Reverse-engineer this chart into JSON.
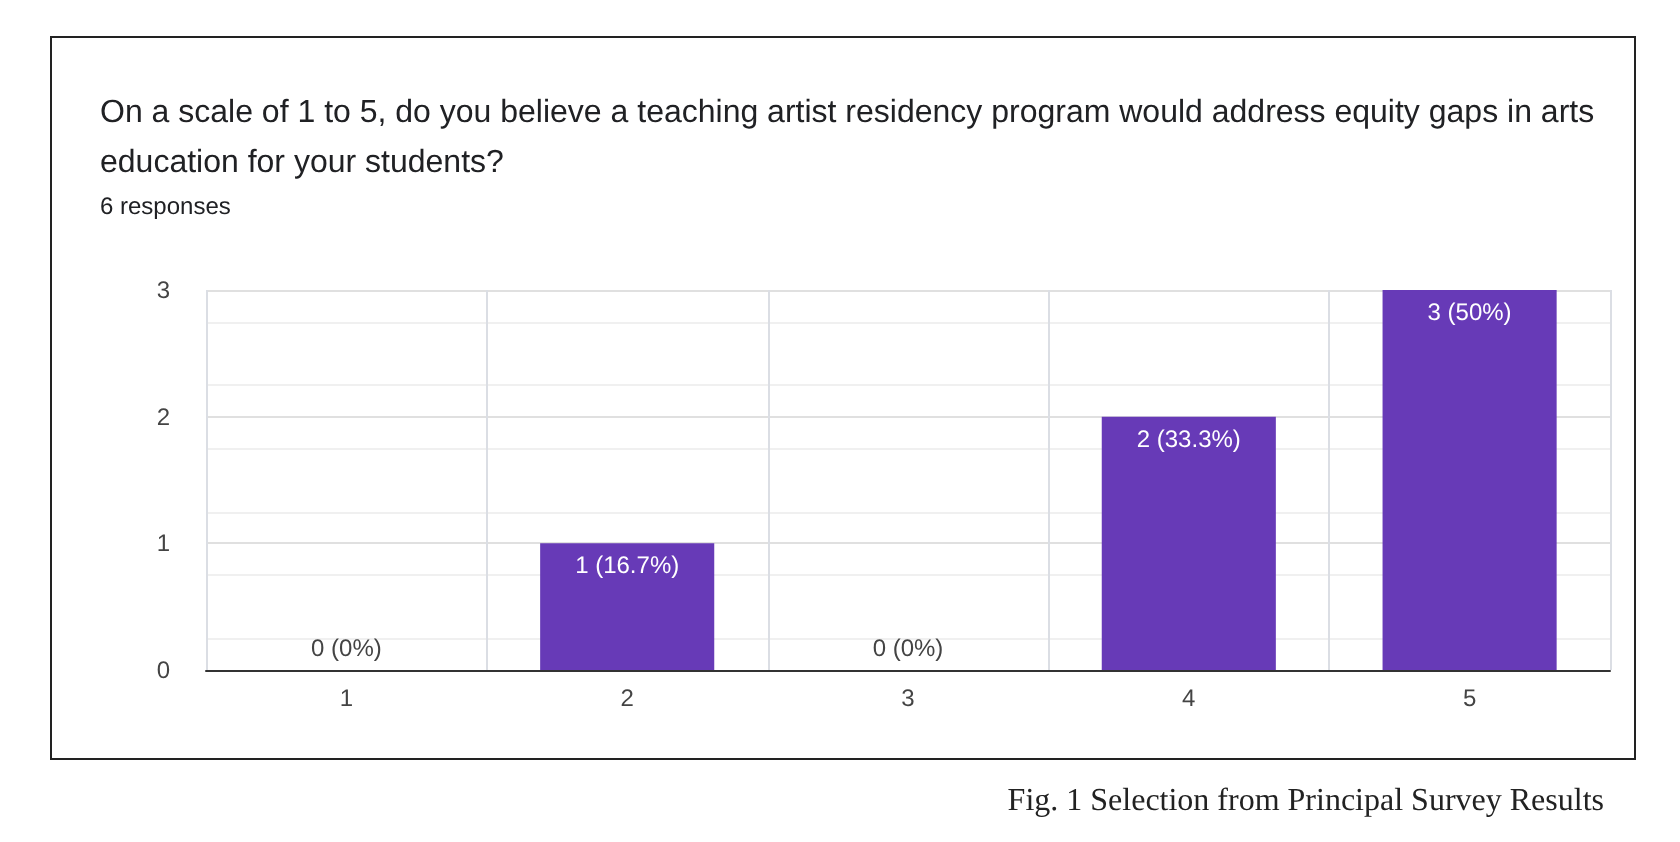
{
  "chart_data": {
    "type": "bar",
    "title": "On a scale of 1 to 5, do you believe a teaching artist residency program would address equity gaps in arts education for your students?",
    "subtitle": "6 responses",
    "categories": [
      "1",
      "2",
      "3",
      "4",
      "5"
    ],
    "values": [
      0,
      1,
      0,
      2,
      3
    ],
    "color": "#673ab7",
    "value_labels": [
      "0 (0%)",
      "1 (16.7%)",
      "0 (0%)",
      "2 (33.3%)",
      "3 (50%)"
    ],
    "ylim": [
      0,
      3
    ],
    "yticks": [
      0,
      1,
      2,
      3
    ],
    "grid": true,
    "annotations": [
      "Fig. 1 Selection from Principal Survey Results"
    ]
  }
}
